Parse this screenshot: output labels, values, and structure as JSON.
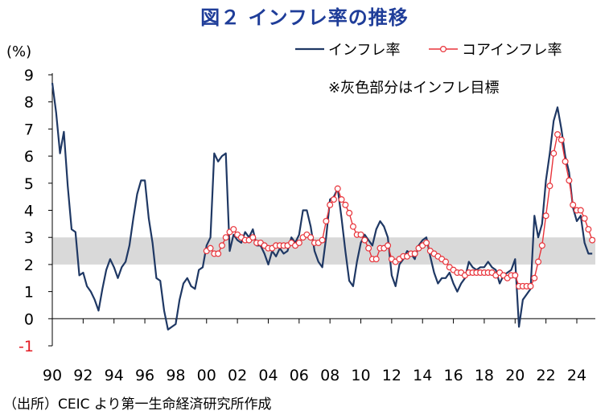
{
  "title": "図２ インフレ率の推移",
  "source": "（出所）CEIC より第一生命経済研究所作成",
  "chart_data": {
    "type": "line",
    "ylabel": "(%)",
    "ylim": [
      -1,
      9
    ],
    "xlim": [
      1990,
      2025.2
    ],
    "y_ticks": [
      "9",
      "8",
      "7",
      "6",
      "5",
      "4",
      "3",
      "2",
      "1",
      "0",
      "-1"
    ],
    "x_tick_labels": [
      "90",
      "92",
      "94",
      "96",
      "98",
      "00",
      "02",
      "04",
      "06",
      "08",
      "10",
      "12",
      "14",
      "16",
      "18",
      "20",
      "22",
      "24"
    ],
    "x_tick_years": [
      1990,
      1992,
      1994,
      1996,
      1998,
      2000,
      2002,
      2004,
      2006,
      2008,
      2010,
      2012,
      2014,
      2016,
      2018,
      2020,
      2022,
      2024
    ],
    "target_band": [
      2,
      3
    ],
    "annotation": "※灰色部分はインフレ目標",
    "grid": false,
    "legend_position": "top-right",
    "colors": {
      "headline": "#1f3864",
      "core": "#e8333a",
      "band": "#d9d9d9",
      "negative_tick": "#e31b23"
    },
    "series": [
      {
        "name": "インフレ率",
        "marker": "none",
        "points": [
          [
            1990.0,
            8.7
          ],
          [
            1990.25,
            7.6
          ],
          [
            1990.5,
            6.1
          ],
          [
            1990.75,
            6.9
          ],
          [
            1991.0,
            4.9
          ],
          [
            1991.25,
            3.3
          ],
          [
            1991.5,
            3.2
          ],
          [
            1991.75,
            1.6
          ],
          [
            1992.0,
            1.7
          ],
          [
            1992.25,
            1.2
          ],
          [
            1992.5,
            1.0
          ],
          [
            1992.75,
            0.7
          ],
          [
            1993.0,
            0.3
          ],
          [
            1993.25,
            1.1
          ],
          [
            1993.5,
            1.8
          ],
          [
            1993.75,
            2.2
          ],
          [
            1994.0,
            1.9
          ],
          [
            1994.25,
            1.5
          ],
          [
            1994.5,
            1.9
          ],
          [
            1994.75,
            2.1
          ],
          [
            1995.0,
            2.7
          ],
          [
            1995.25,
            3.7
          ],
          [
            1995.5,
            4.6
          ],
          [
            1995.75,
            5.1
          ],
          [
            1996.0,
            5.1
          ],
          [
            1996.25,
            3.7
          ],
          [
            1996.5,
            2.8
          ],
          [
            1996.75,
            1.5
          ],
          [
            1997.0,
            1.4
          ],
          [
            1997.25,
            0.3
          ],
          [
            1997.5,
            -0.4
          ],
          [
            1997.75,
            -0.3
          ],
          [
            1998.0,
            -0.2
          ],
          [
            1998.25,
            0.7
          ],
          [
            1998.5,
            1.3
          ],
          [
            1998.75,
            1.5
          ],
          [
            1999.0,
            1.2
          ],
          [
            1999.25,
            1.1
          ],
          [
            1999.5,
            1.8
          ],
          [
            1999.75,
            1.9
          ],
          [
            2000.0,
            2.7
          ],
          [
            2000.25,
            3.0
          ],
          [
            2000.5,
            6.1
          ],
          [
            2000.75,
            5.8
          ],
          [
            2001.0,
            6.0
          ],
          [
            2001.25,
            6.1
          ],
          [
            2001.5,
            2.5
          ],
          [
            2001.75,
            3.1
          ],
          [
            2002.0,
            2.9
          ],
          [
            2002.25,
            2.8
          ],
          [
            2002.5,
            3.2
          ],
          [
            2002.75,
            3.0
          ],
          [
            2003.0,
            3.3
          ],
          [
            2003.25,
            2.7
          ],
          [
            2003.5,
            2.7
          ],
          [
            2003.75,
            2.4
          ],
          [
            2004.0,
            2.0
          ],
          [
            2004.25,
            2.5
          ],
          [
            2004.5,
            2.3
          ],
          [
            2004.75,
            2.6
          ],
          [
            2005.0,
            2.4
          ],
          [
            2005.25,
            2.5
          ],
          [
            2005.5,
            3.0
          ],
          [
            2005.75,
            2.8
          ],
          [
            2006.0,
            3.1
          ],
          [
            2006.25,
            4.0
          ],
          [
            2006.5,
            4.0
          ],
          [
            2006.75,
            3.4
          ],
          [
            2007.0,
            2.5
          ],
          [
            2007.25,
            2.1
          ],
          [
            2007.5,
            1.9
          ],
          [
            2007.75,
            3.0
          ],
          [
            2008.0,
            4.4
          ],
          [
            2008.25,
            4.5
          ],
          [
            2008.5,
            4.8
          ],
          [
            2008.75,
            3.7
          ],
          [
            2009.0,
            2.5
          ],
          [
            2009.25,
            1.4
          ],
          [
            2009.5,
            1.2
          ],
          [
            2009.75,
            2.1
          ],
          [
            2010.0,
            2.8
          ],
          [
            2010.25,
            3.1
          ],
          [
            2010.5,
            2.9
          ],
          [
            2010.75,
            2.7
          ],
          [
            2011.0,
            3.3
          ],
          [
            2011.25,
            3.6
          ],
          [
            2011.5,
            3.4
          ],
          [
            2011.75,
            3.0
          ],
          [
            2012.0,
            1.6
          ],
          [
            2012.25,
            1.2
          ],
          [
            2012.5,
            2.0
          ],
          [
            2012.75,
            2.2
          ],
          [
            2013.0,
            2.5
          ],
          [
            2013.25,
            2.4
          ],
          [
            2013.5,
            2.2
          ],
          [
            2013.75,
            2.7
          ],
          [
            2014.0,
            2.9
          ],
          [
            2014.25,
            3.0
          ],
          [
            2014.5,
            2.3
          ],
          [
            2014.75,
            1.7
          ],
          [
            2015.0,
            1.3
          ],
          [
            2015.25,
            1.5
          ],
          [
            2015.5,
            1.5
          ],
          [
            2015.75,
            1.7
          ],
          [
            2016.0,
            1.3
          ],
          [
            2016.25,
            1.0
          ],
          [
            2016.5,
            1.3
          ],
          [
            2016.75,
            1.5
          ],
          [
            2017.0,
            2.1
          ],
          [
            2017.25,
            1.9
          ],
          [
            2017.5,
            1.8
          ],
          [
            2017.75,
            1.9
          ],
          [
            2018.0,
            1.9
          ],
          [
            2018.25,
            2.1
          ],
          [
            2018.5,
            1.9
          ],
          [
            2018.75,
            1.8
          ],
          [
            2019.0,
            1.3
          ],
          [
            2019.25,
            1.6
          ],
          [
            2019.5,
            1.7
          ],
          [
            2019.75,
            1.8
          ],
          [
            2020.0,
            2.2
          ],
          [
            2020.25,
            -0.3
          ],
          [
            2020.5,
            0.7
          ],
          [
            2020.75,
            0.9
          ],
          [
            2021.0,
            1.1
          ],
          [
            2021.25,
            3.8
          ],
          [
            2021.5,
            3.0
          ],
          [
            2021.75,
            3.5
          ],
          [
            2022.0,
            5.1
          ],
          [
            2022.25,
            6.1
          ],
          [
            2022.5,
            7.3
          ],
          [
            2022.75,
            7.8
          ],
          [
            2023.0,
            7.0
          ],
          [
            2023.25,
            6.0
          ],
          [
            2023.5,
            5.4
          ],
          [
            2023.75,
            4.1
          ],
          [
            2024.0,
            3.6
          ],
          [
            2024.25,
            3.8
          ],
          [
            2024.5,
            2.8
          ],
          [
            2024.75,
            2.4
          ],
          [
            2025.0,
            2.4
          ]
        ]
      },
      {
        "name": "コアインフレ率",
        "marker": "circle",
        "points": [
          [
            2000.0,
            2.5
          ],
          [
            2000.25,
            2.6
          ],
          [
            2000.5,
            2.4
          ],
          [
            2000.75,
            2.4
          ],
          [
            2001.0,
            2.7
          ],
          [
            2001.25,
            3.0
          ],
          [
            2001.5,
            3.2
          ],
          [
            2001.75,
            3.3
          ],
          [
            2002.0,
            3.1
          ],
          [
            2002.25,
            3.0
          ],
          [
            2002.5,
            2.9
          ],
          [
            2002.75,
            2.9
          ],
          [
            2003.0,
            3.0
          ],
          [
            2003.25,
            2.8
          ],
          [
            2003.5,
            2.8
          ],
          [
            2003.75,
            2.7
          ],
          [
            2004.0,
            2.6
          ],
          [
            2004.25,
            2.6
          ],
          [
            2004.5,
            2.7
          ],
          [
            2004.75,
            2.7
          ],
          [
            2005.0,
            2.7
          ],
          [
            2005.25,
            2.7
          ],
          [
            2005.5,
            2.8
          ],
          [
            2005.75,
            2.7
          ],
          [
            2006.0,
            2.8
          ],
          [
            2006.25,
            3.0
          ],
          [
            2006.5,
            3.1
          ],
          [
            2006.75,
            3.0
          ],
          [
            2007.0,
            2.8
          ],
          [
            2007.25,
            2.8
          ],
          [
            2007.5,
            2.9
          ],
          [
            2007.75,
            3.6
          ],
          [
            2008.0,
            4.2
          ],
          [
            2008.25,
            4.4
          ],
          [
            2008.5,
            4.8
          ],
          [
            2008.75,
            4.4
          ],
          [
            2009.0,
            4.2
          ],
          [
            2009.25,
            3.9
          ],
          [
            2009.5,
            3.4
          ],
          [
            2009.75,
            3.1
          ],
          [
            2010.0,
            3.1
          ],
          [
            2010.25,
            2.9
          ],
          [
            2010.5,
            2.6
          ],
          [
            2010.75,
            2.2
          ],
          [
            2011.0,
            2.2
          ],
          [
            2011.25,
            2.6
          ],
          [
            2011.5,
            2.6
          ],
          [
            2011.75,
            2.7
          ],
          [
            2012.0,
            2.2
          ],
          [
            2012.25,
            2.1
          ],
          [
            2012.5,
            2.2
          ],
          [
            2012.75,
            2.3
          ],
          [
            2013.0,
            2.3
          ],
          [
            2013.25,
            2.4
          ],
          [
            2013.5,
            2.4
          ],
          [
            2013.75,
            2.6
          ],
          [
            2014.0,
            2.7
          ],
          [
            2014.25,
            2.8
          ],
          [
            2014.5,
            2.5
          ],
          [
            2014.75,
            2.4
          ],
          [
            2015.0,
            2.3
          ],
          [
            2015.25,
            2.2
          ],
          [
            2015.5,
            2.1
          ],
          [
            2015.75,
            1.9
          ],
          [
            2016.0,
            1.8
          ],
          [
            2016.25,
            1.7
          ],
          [
            2016.5,
            1.7
          ],
          [
            2016.75,
            1.6
          ],
          [
            2017.0,
            1.7
          ],
          [
            2017.25,
            1.7
          ],
          [
            2017.5,
            1.7
          ],
          [
            2017.75,
            1.7
          ],
          [
            2018.0,
            1.7
          ],
          [
            2018.25,
            1.7
          ],
          [
            2018.5,
            1.7
          ],
          [
            2018.75,
            1.6
          ],
          [
            2019.0,
            1.7
          ],
          [
            2019.25,
            1.6
          ],
          [
            2019.5,
            1.5
          ],
          [
            2019.75,
            1.6
          ],
          [
            2020.0,
            1.6
          ],
          [
            2020.25,
            1.2
          ],
          [
            2020.5,
            1.2
          ],
          [
            2020.75,
            1.2
          ],
          [
            2021.0,
            1.2
          ],
          [
            2021.25,
            1.5
          ],
          [
            2021.5,
            2.1
          ],
          [
            2021.75,
            2.7
          ],
          [
            2022.0,
            3.8
          ],
          [
            2022.25,
            4.9
          ],
          [
            2022.5,
            6.1
          ],
          [
            2022.75,
            6.8
          ],
          [
            2023.0,
            6.6
          ],
          [
            2023.25,
            5.8
          ],
          [
            2023.5,
            5.1
          ],
          [
            2023.75,
            4.2
          ],
          [
            2024.0,
            4.0
          ],
          [
            2024.25,
            4.0
          ],
          [
            2024.5,
            3.7
          ],
          [
            2024.75,
            3.3
          ],
          [
            2025.0,
            2.9
          ]
        ]
      }
    ]
  }
}
